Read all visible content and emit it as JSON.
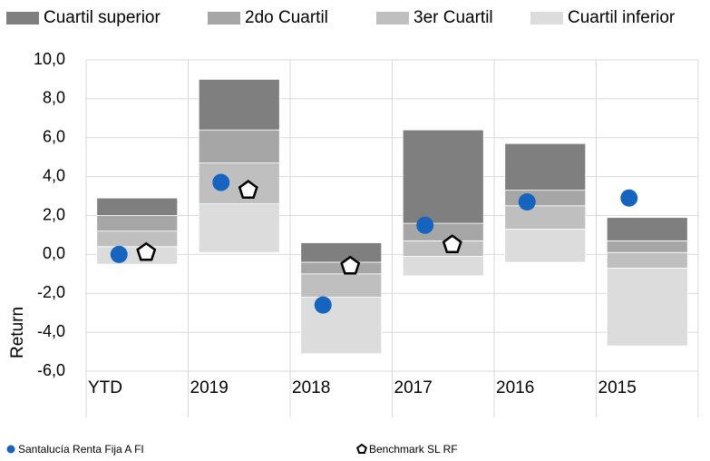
{
  "chart_data": {
    "type": "floating-stacked-bar",
    "y_label": "Return",
    "categories": [
      "YTD",
      "2019",
      "2018",
      "2017",
      "2016",
      "2015"
    ],
    "base": [
      -0.5,
      0.1,
      -5.1,
      -1.1,
      -0.4,
      -4.7
    ],
    "series": [
      {
        "name": "Cuartil superior",
        "color": "#7f7f7f",
        "values": [
          0.9,
          2.6,
          1.0,
          4.8,
          2.4,
          1.2
        ]
      },
      {
        "name": "2do Cuartil",
        "color": "#a6a6a6",
        "values": [
          0.8,
          1.7,
          0.6,
          0.9,
          0.8,
          0.6
        ]
      },
      {
        "name": "3er Cuartil",
        "color": "#bfbfbf",
        "values": [
          0.8,
          2.1,
          1.2,
          0.8,
          1.2,
          0.8
        ]
      },
      {
        "name": "Cuartil inferior",
        "color": "#dcdcdc",
        "values": [
          0.9,
          2.5,
          2.9,
          1.0,
          1.7,
          4.0
        ]
      }
    ],
    "points": [
      {
        "name": "Santalucía Renta Fija A FI",
        "color": "#1565c0",
        "marker": "circle",
        "values": [
          0.0,
          3.7,
          -2.6,
          1.5,
          2.7,
          2.9
        ]
      },
      {
        "name": "Benchmark SL RF",
        "color": "#000000",
        "marker": "pentagon",
        "values": [
          0.1,
          3.3,
          -0.6,
          0.5,
          null,
          null
        ]
      }
    ],
    "ylim": [
      -6,
      10
    ],
    "yticks": [
      {
        "value": -6,
        "label": "-6,0"
      },
      {
        "value": -4,
        "label": "-4,0"
      },
      {
        "value": -2,
        "label": "-2,0"
      },
      {
        "value": 0,
        "label": "0,0"
      },
      {
        "value": 2,
        "label": "2,0"
      },
      {
        "value": 4,
        "label": "4,0"
      },
      {
        "value": 6,
        "label": "6,0"
      },
      {
        "value": 8,
        "label": "8,0"
      },
      {
        "value": 10,
        "label": "10,0"
      }
    ],
    "grid": true
  }
}
